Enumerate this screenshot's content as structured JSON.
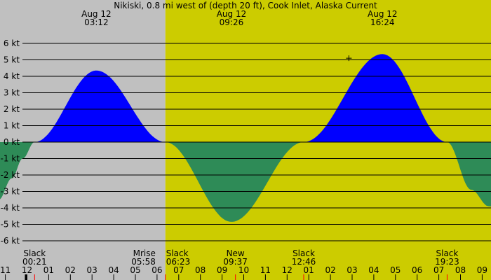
{
  "chart_data": {
    "type": "area",
    "title": "Nikiski, 0.8 mi west of (depth 20 ft), Cook Inlet, Alaska Current",
    "colors": {
      "night": "#c0c0c0",
      "day": "#cccc00",
      "flood": "#0000ff",
      "ebb": "#2e8b57",
      "grid": "#000000",
      "sunrise_tick": "#ff0000"
    },
    "x_unit": "hours",
    "x_range": [
      -1.3,
      22.1
    ],
    "ylim": [
      -6.5,
      6.3
    ],
    "day_start_hour": 6.383,
    "y_ticks": [
      {
        "value": 6,
        "label": "6 kt"
      },
      {
        "value": 5,
        "label": "5 kt"
      },
      {
        "value": 4,
        "label": "4 kt"
      },
      {
        "value": 3,
        "label": "3 kt"
      },
      {
        "value": 2,
        "label": "2 kt"
      },
      {
        "value": 1,
        "label": "1 kt"
      },
      {
        "value": 0,
        "label": "0 kt"
      },
      {
        "value": -1,
        "label": "-1 kt"
      },
      {
        "value": -2,
        "label": "-2 kt"
      },
      {
        "value": -3,
        "label": "-3 kt"
      },
      {
        "value": -4,
        "label": "-4 kt"
      },
      {
        "value": -5,
        "label": "-5 kt"
      },
      {
        "value": -6,
        "label": "-6 kt"
      }
    ],
    "x_tick_labels": [
      {
        "hour": -1,
        "label": "11"
      },
      {
        "hour": 0,
        "label": "12"
      },
      {
        "hour": 1,
        "label": "01"
      },
      {
        "hour": 2,
        "label": "02"
      },
      {
        "hour": 3,
        "label": "03"
      },
      {
        "hour": 4,
        "label": "04"
      },
      {
        "hour": 5,
        "label": "05"
      },
      {
        "hour": 6,
        "label": "06"
      },
      {
        "hour": 7,
        "label": "07"
      },
      {
        "hour": 8,
        "label": "08"
      },
      {
        "hour": 9,
        "label": "09"
      },
      {
        "hour": 10,
        "label": "10"
      },
      {
        "hour": 11,
        "label": "11"
      },
      {
        "hour": 12,
        "label": "12"
      },
      {
        "hour": 13,
        "label": "01"
      },
      {
        "hour": 14,
        "label": "02"
      },
      {
        "hour": 15,
        "label": "03"
      },
      {
        "hour": 16,
        "label": "04"
      },
      {
        "hour": 17,
        "label": "05"
      },
      {
        "hour": 18,
        "label": "06"
      },
      {
        "hour": 19,
        "label": "07"
      },
      {
        "hour": 20,
        "label": "08"
      },
      {
        "hour": 21,
        "label": "09"
      }
    ],
    "red_ticks": [
      0.35,
      6.383,
      9.617,
      12.767,
      19.383
    ],
    "black_ticks": [
      -0.05
    ],
    "max_events": [
      {
        "hour": 3.2,
        "date": "Aug 12",
        "time": "03:12",
        "value": 4.35
      },
      {
        "hour": 9.433,
        "date": "Aug 12",
        "time": "09:26",
        "value": -4.85
      },
      {
        "hour": 16.4,
        "date": "Aug 12",
        "time": "16:24",
        "value": 5.35
      }
    ],
    "bottom_events": [
      {
        "hour": 0.35,
        "label": "Slack",
        "time": "00:21",
        "anchor": "middle"
      },
      {
        "hour": 5.967,
        "label": "Mrise",
        "time": "05:58",
        "anchor": "end"
      },
      {
        "hour": 6.383,
        "label": "Slack",
        "time": "06:23",
        "anchor": "start"
      },
      {
        "hour": 9.617,
        "label": "New",
        "time": "09:37",
        "anchor": "middle"
      },
      {
        "hour": 12.767,
        "label": "Slack",
        "time": "12:46",
        "anchor": "middle"
      },
      {
        "hour": 19.383,
        "label": "Slack",
        "time": "19:23",
        "anchor": "middle"
      }
    ],
    "current_marker": {
      "hour": 14.85,
      "value": 5.1
    },
    "series": [
      {
        "kind": "ebb",
        "points": [
          [
            -1.3,
            -3.5
          ],
          [
            -0.7,
            -2.2
          ],
          [
            -0.2,
            -1.0
          ],
          [
            0.35,
            0.0
          ]
        ]
      },
      {
        "kind": "flood",
        "points": [
          [
            0.35,
            0.0
          ],
          [
            3.2,
            4.35
          ],
          [
            6.383,
            0.0
          ]
        ]
      },
      {
        "kind": "ebb",
        "points": [
          [
            6.383,
            0.0
          ],
          [
            9.433,
            -4.85
          ],
          [
            12.767,
            0.0
          ]
        ]
      },
      {
        "kind": "flood",
        "points": [
          [
            12.767,
            0.0
          ],
          [
            16.4,
            5.35
          ],
          [
            19.383,
            0.0
          ]
        ]
      },
      {
        "kind": "ebb",
        "points": [
          [
            19.383,
            0.0
          ],
          [
            20.5,
            -2.9
          ],
          [
            21.3,
            -3.9
          ],
          [
            22.1,
            -4.3
          ]
        ]
      }
    ]
  }
}
